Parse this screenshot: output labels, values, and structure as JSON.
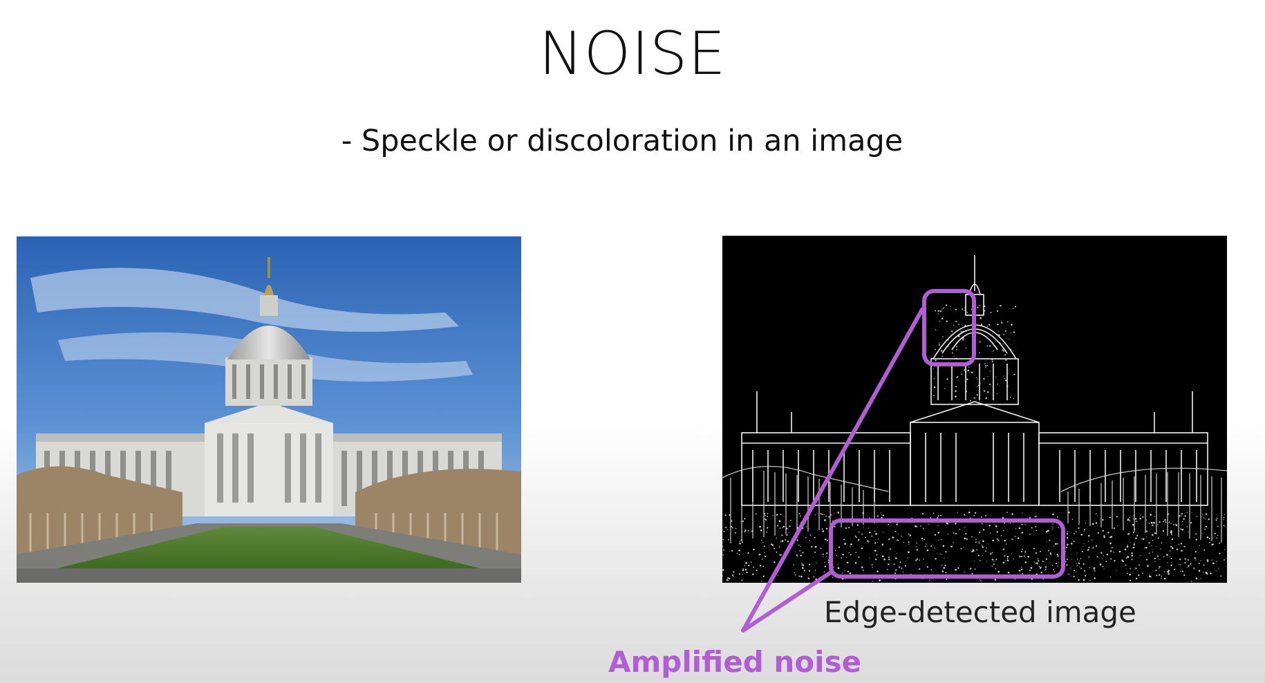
{
  "slide": {
    "title": "NOISE",
    "subtitle": "- Speckle or discoloration in an image",
    "caption": "Edge-detected image",
    "callout_label": "Amplified noise"
  },
  "colors": {
    "callout": "#b15ed4",
    "sky_top": "#2f6fbf",
    "sky_bottom": "#a9c8e8",
    "grass": "#4f7a30",
    "edge_background": "#000000"
  },
  "images": {
    "left": "city-hall-photo",
    "right": "city-hall-edge-detected"
  }
}
